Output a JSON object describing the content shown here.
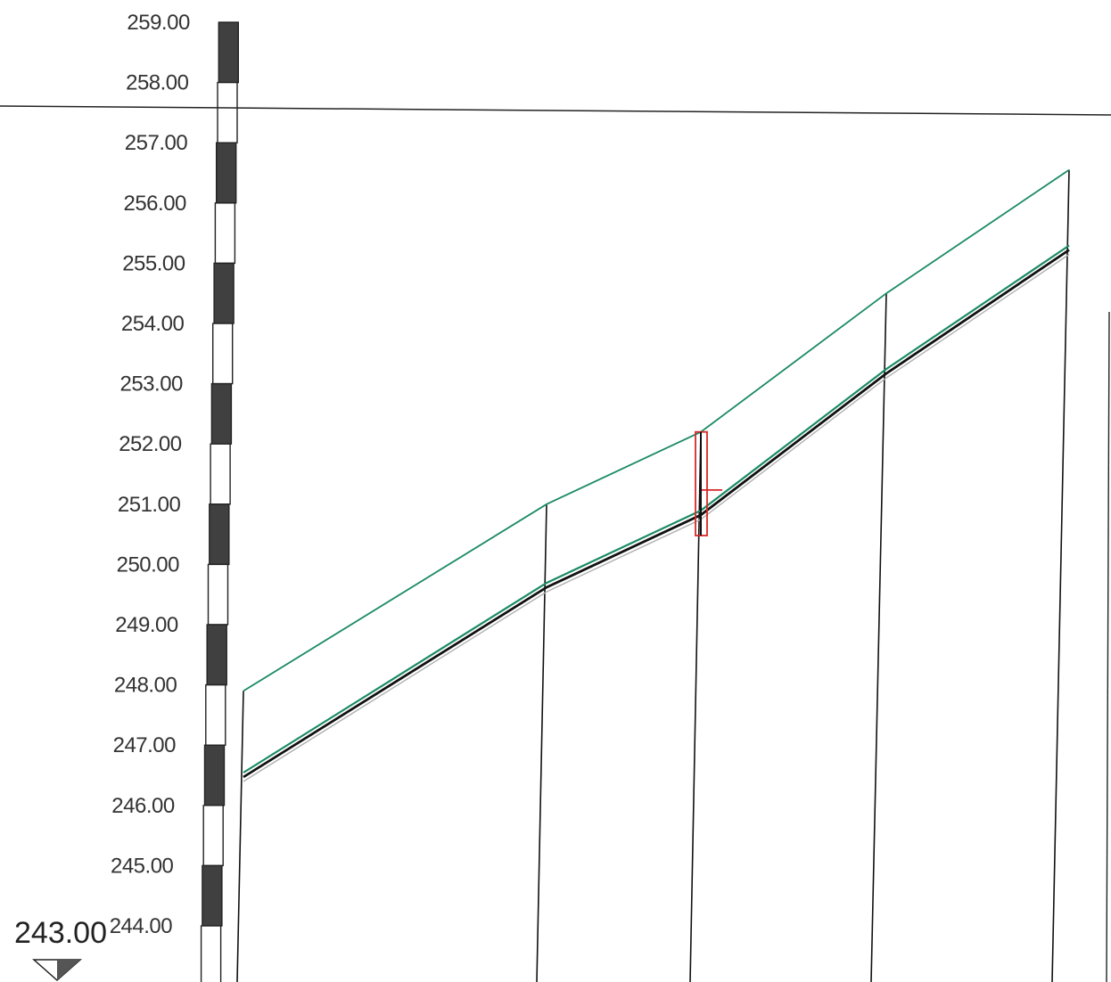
{
  "datum": {
    "label": "243.00",
    "value": 243.0
  },
  "elevation_scale": {
    "labels": [
      "259.00",
      "258.00",
      "257.00",
      "256.00",
      "255.00",
      "254.00",
      "253.00",
      "252.00",
      "251.00",
      "250.00",
      "249.00",
      "248.00",
      "247.00",
      "246.00",
      "245.00",
      "244.00"
    ]
  },
  "colors": {
    "ground_line": "#1a8a64",
    "pipe_line": "#111111",
    "pipe_invert_line": "#1a8a64",
    "station_line": "#111111",
    "structure_marker": "#d62828",
    "scale_dark": "#404040"
  },
  "reference_line": {
    "elevation": 257.55
  },
  "profile": {
    "stations": [
      {
        "index": 0,
        "ground": 247.9,
        "pipe": 246.5
      },
      {
        "index": 1,
        "ground": 251.0,
        "pipe": 249.65
      },
      {
        "index": 2,
        "ground": 252.2,
        "pipe": 250.85,
        "structure": true
      },
      {
        "index": 3,
        "ground": 254.5,
        "pipe": 253.2
      },
      {
        "index": 4,
        "ground": 256.55,
        "pipe": 255.25
      }
    ]
  }
}
